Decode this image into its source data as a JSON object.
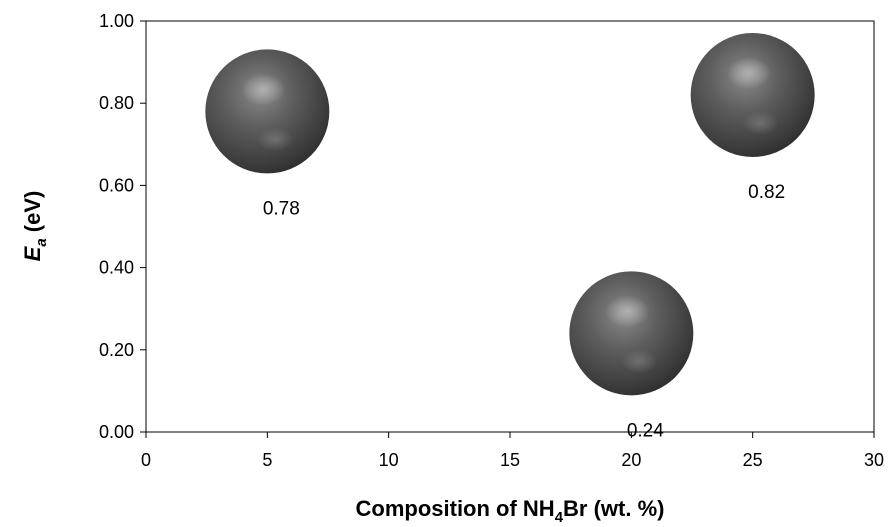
{
  "chart_data": {
    "type": "scatter",
    "title": "",
    "xlabel": {
      "prefix": "Composition of NH",
      "subscript": "4",
      "suffix": "Br (wt. %)"
    },
    "ylabel": {
      "symbol": "E",
      "subscript": "a",
      "suffix": " (eV)"
    },
    "xlim": [
      0,
      30
    ],
    "ylim": [
      0,
      1.0
    ],
    "x_ticks": [
      "0",
      "5",
      "10",
      "15",
      "20",
      "25",
      "30"
    ],
    "y_ticks": [
      "0.00",
      "0.20",
      "0.40",
      "0.60",
      "0.80",
      "1.00"
    ],
    "grid": false,
    "marker": "sphere",
    "marker_color": "#555555",
    "points": [
      {
        "x": 5,
        "y": 0.78,
        "label": "0.78",
        "label_position": "below"
      },
      {
        "x": 25,
        "y": 0.82,
        "label": "0.82",
        "label_position": "below"
      },
      {
        "x": 20,
        "y": 0.24,
        "label": "0.24",
        "label_position": "below"
      }
    ]
  }
}
